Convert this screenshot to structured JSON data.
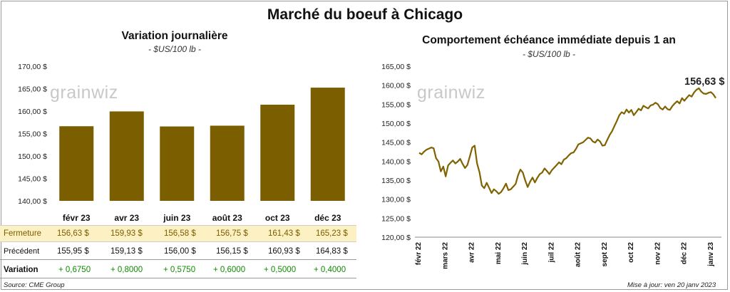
{
  "title": "Marché du boeuf à Chicago",
  "left_chart": {
    "subtitle": "Variation journalière",
    "unit": "- $US/100 lb -",
    "watermark": "grainwiz"
  },
  "right_chart": {
    "subtitle": "Comportement échéance immédiate depuis 1 an",
    "unit": "- $US/100 lb -",
    "watermark": "grainwiz",
    "last_value_label": "156,63 $"
  },
  "table": {
    "rows": [
      {
        "label": "Fermeture",
        "cells": [
          "156,63  $",
          "159,93  $",
          "156,58  $",
          "156,75  $",
          "161,43  $",
          "165,23  $"
        ]
      },
      {
        "label": "Précédent",
        "cells": [
          "155,95  $",
          "159,13  $",
          "156,00  $",
          "156,15  $",
          "160,93  $",
          "164,83  $"
        ]
      },
      {
        "label": "Variation",
        "cells": [
          "+ 0,6750",
          "+ 0,8000",
          "+ 0,5750",
          "+ 0,6000",
          "+ 0,5000",
          "+ 0,4000"
        ]
      }
    ]
  },
  "footer": {
    "source": "Source: CME Group",
    "update": "Mise à jour: ven 20 janv 2023"
  },
  "colors": {
    "bar": "#7a5e00",
    "line": "#806200",
    "highlight_row": "#fdf0c2",
    "positive": "#0f8a00"
  },
  "chart_data": [
    {
      "type": "bar",
      "title": "Variation journalière",
      "categories": [
        "févr 23",
        "avr 23",
        "juin 23",
        "août 23",
        "oct 23",
        "déc 23"
      ],
      "values": [
        156.63,
        159.93,
        156.58,
        156.75,
        161.43,
        165.23
      ],
      "ylim": [
        140,
        170
      ],
      "yticks": [
        "140,00 $",
        "145,00 $",
        "150,00 $",
        "155,00 $",
        "160,00 $",
        "165,00 $",
        "170,00 $"
      ],
      "ytick_values": [
        140,
        145,
        150,
        155,
        160,
        165,
        170
      ]
    },
    {
      "type": "line",
      "title": "Comportement échéance immédiate depuis 1 an",
      "x_labels": [
        "févr 22",
        "mars 22",
        "avr 22",
        "mai 22",
        "juin 22",
        "juil 22",
        "août 22",
        "sept 22",
        "oct 22",
        "nov 22",
        "déc 22",
        "janv 23"
      ],
      "ylim": [
        120,
        165
      ],
      "yticks": [
        "120,00 $",
        "125,00 $",
        "130,00 $",
        "135,00 $",
        "140,00 $",
        "145,00 $",
        "150,00 $",
        "155,00 $",
        "160,00 $",
        "165,00 $"
      ],
      "ytick_values": [
        120,
        125,
        130,
        135,
        140,
        145,
        150,
        155,
        160,
        165
      ],
      "last_value": 156.63,
      "values": [
        142.2,
        141.8,
        142.5,
        143.0,
        143.3,
        143.6,
        143.4,
        140.8,
        139.9,
        137.3,
        138.6,
        136.0,
        138.9,
        139.6,
        140.2,
        139.4,
        139.9,
        140.6,
        139.3,
        138.2,
        139.0,
        141.2,
        143.6,
        144.1,
        139.4,
        137.1,
        133.6,
        132.9,
        134.3,
        133.0,
        131.6,
        132.6,
        132.1,
        131.4,
        131.9,
        132.9,
        134.1,
        132.4,
        132.6,
        133.3,
        134.0,
        136.3,
        137.8,
        137.0,
        134.9,
        133.2,
        134.6,
        135.7,
        134.4,
        135.6,
        136.6,
        137.0,
        138.1,
        137.4,
        136.6,
        137.6,
        138.3,
        139.0,
        139.7,
        139.2,
        140.4,
        140.8,
        141.5,
        142.1,
        142.3,
        143.2,
        144.4,
        144.7,
        145.0,
        145.6,
        146.2,
        146.0,
        145.2,
        144.9,
        145.7,
        145.2,
        144.1,
        144.2,
        145.6,
        146.9,
        147.9,
        149.3,
        150.6,
        152.1,
        152.9,
        152.5,
        153.6,
        152.8,
        153.5,
        152.1,
        152.9,
        153.8,
        153.4,
        154.6,
        154.2,
        153.9,
        154.7,
        154.9,
        155.4,
        155.0,
        154.0,
        153.6,
        154.4,
        153.7,
        153.5,
        154.5,
        155.2,
        155.8,
        155.2,
        156.6,
        155.9,
        156.7,
        157.4,
        157.0,
        158.1,
        158.8,
        159.2,
        158.3,
        157.8,
        157.7,
        158.0,
        158.2,
        157.6,
        156.63
      ]
    }
  ]
}
